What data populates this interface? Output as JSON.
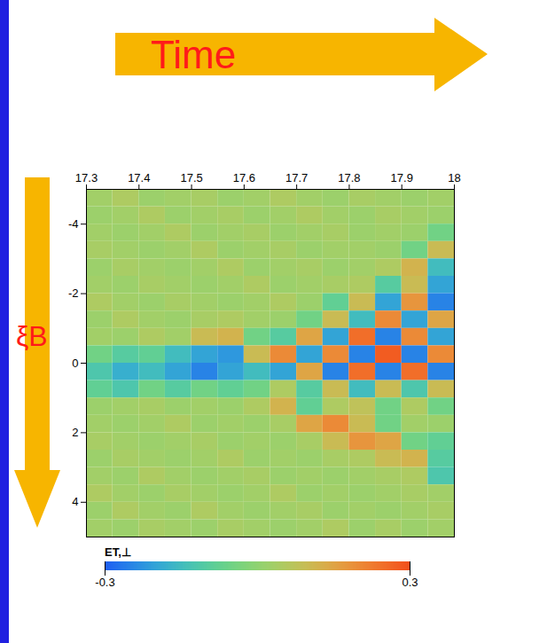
{
  "chart_data": {
    "type": "heatmap",
    "x": [
      17.325,
      17.375,
      17.425,
      17.475,
      17.525,
      17.575,
      17.625,
      17.675,
      17.725,
      17.775,
      17.825,
      17.875,
      17.925,
      17.975
    ],
    "y": [
      -4.75,
      -4.25,
      -3.75,
      -3.25,
      -2.75,
      -2.25,
      -1.75,
      -1.25,
      -0.75,
      -0.25,
      0.25,
      0.75,
      1.25,
      1.75,
      2.25,
      2.75,
      3.25,
      3.75,
      4.25,
      4.75
    ],
    "cells": [
      [
        0.03,
        0.05,
        0.02,
        0.03,
        0.04,
        0.02,
        0.03,
        0.05,
        0.03,
        0.02,
        0.04,
        0.03,
        0.02,
        0.03
      ],
      [
        0.02,
        0.03,
        0.05,
        0.02,
        0.03,
        0.04,
        0.02,
        0.03,
        0.05,
        0.03,
        0.02,
        0.04,
        0.03,
        0.02
      ],
      [
        0.03,
        0.02,
        0.03,
        0.05,
        0.02,
        0.03,
        0.04,
        0.02,
        0.03,
        0.04,
        0.02,
        0.03,
        0.02,
        -0.05
      ],
      [
        0.04,
        0.03,
        0.02,
        0.03,
        0.05,
        0.02,
        0.03,
        0.04,
        0.02,
        0.03,
        0.03,
        0.02,
        -0.05,
        0.1
      ],
      [
        0.02,
        0.04,
        0.03,
        0.02,
        0.03,
        0.05,
        0.02,
        0.03,
        0.04,
        0.02,
        0.03,
        0.05,
        0.12,
        -0.15
      ],
      [
        0.03,
        0.02,
        0.04,
        0.03,
        0.02,
        0.03,
        0.05,
        0.02,
        0.03,
        0.04,
        0.05,
        -0.1,
        0.1,
        -0.2
      ],
      [
        0.05,
        0.03,
        0.02,
        0.04,
        0.03,
        0.02,
        0.03,
        0.05,
        0.02,
        -0.08,
        0.1,
        -0.2,
        0.18,
        -0.25
      ],
      [
        0.02,
        0.05,
        0.03,
        0.02,
        0.04,
        0.05,
        0.03,
        0.02,
        -0.05,
        0.1,
        -0.15,
        0.2,
        -0.2,
        0.15
      ],
      [
        0.03,
        0.02,
        0.05,
        0.03,
        0.1,
        0.12,
        -0.05,
        -0.1,
        0.15,
        -0.2,
        0.25,
        -0.25,
        0.2,
        -0.2
      ],
      [
        -0.05,
        -0.1,
        -0.08,
        -0.15,
        -0.2,
        -0.22,
        0.1,
        0.2,
        -0.2,
        0.2,
        -0.25,
        0.28,
        -0.25,
        0.2
      ],
      [
        -0.12,
        -0.18,
        -0.15,
        -0.2,
        -0.25,
        -0.2,
        -0.15,
        -0.2,
        0.15,
        -0.25,
        0.25,
        -0.25,
        0.25,
        -0.25
      ],
      [
        -0.08,
        -0.12,
        -0.05,
        -0.1,
        -0.05,
        -0.08,
        -0.05,
        0.05,
        -0.1,
        0.1,
        -0.15,
        0.1,
        -0.12,
        0.1
      ],
      [
        0.02,
        0.03,
        0.04,
        0.02,
        0.03,
        0.02,
        0.05,
        0.12,
        -0.08,
        0.05,
        0.08,
        -0.05,
        0.05,
        -0.05
      ],
      [
        0.03,
        0.02,
        0.03,
        0.05,
        0.02,
        0.03,
        0.02,
        0.04,
        0.15,
        0.2,
        0.1,
        -0.05,
        0.03,
        0.02
      ],
      [
        0.04,
        0.03,
        0.02,
        0.03,
        0.04,
        0.02,
        0.03,
        0.02,
        0.04,
        0.1,
        0.18,
        0.15,
        -0.05,
        -0.08
      ],
      [
        0.02,
        0.04,
        0.03,
        0.02,
        0.03,
        0.05,
        0.02,
        0.03,
        0.02,
        0.04,
        0.05,
        0.1,
        0.12,
        -0.1
      ],
      [
        0.03,
        0.02,
        0.05,
        0.03,
        0.02,
        0.03,
        0.04,
        0.02,
        0.03,
        0.02,
        0.03,
        0.04,
        0.05,
        -0.12
      ],
      [
        0.05,
        0.03,
        0.02,
        0.04,
        0.03,
        0.02,
        0.03,
        0.05,
        0.02,
        0.03,
        0.02,
        0.03,
        0.04,
        0.03
      ],
      [
        0.02,
        0.05,
        0.03,
        0.02,
        0.05,
        0.03,
        0.02,
        0.03,
        0.04,
        0.02,
        0.03,
        0.02,
        0.03,
        0.04
      ],
      [
        0.03,
        0.02,
        0.04,
        0.03,
        0.02,
        0.04,
        0.03,
        0.02,
        0.03,
        0.05,
        0.02,
        0.04,
        0.02,
        0.03
      ]
    ],
    "xlim": [
      17.3,
      18
    ],
    "xticks": [
      17.3,
      17.4,
      17.5,
      17.6,
      17.7,
      17.8,
      17.9,
      18
    ],
    "ylim": [
      -5,
      5
    ],
    "yticks": [
      -4,
      -2,
      0,
      2,
      4
    ],
    "colorbar": {
      "label": "ET,⊥",
      "lim": [
        -0.3,
        0.3
      ],
      "ticks": [
        -0.3,
        0.3
      ]
    },
    "annotations": [
      "Time",
      "ξB"
    ]
  }
}
